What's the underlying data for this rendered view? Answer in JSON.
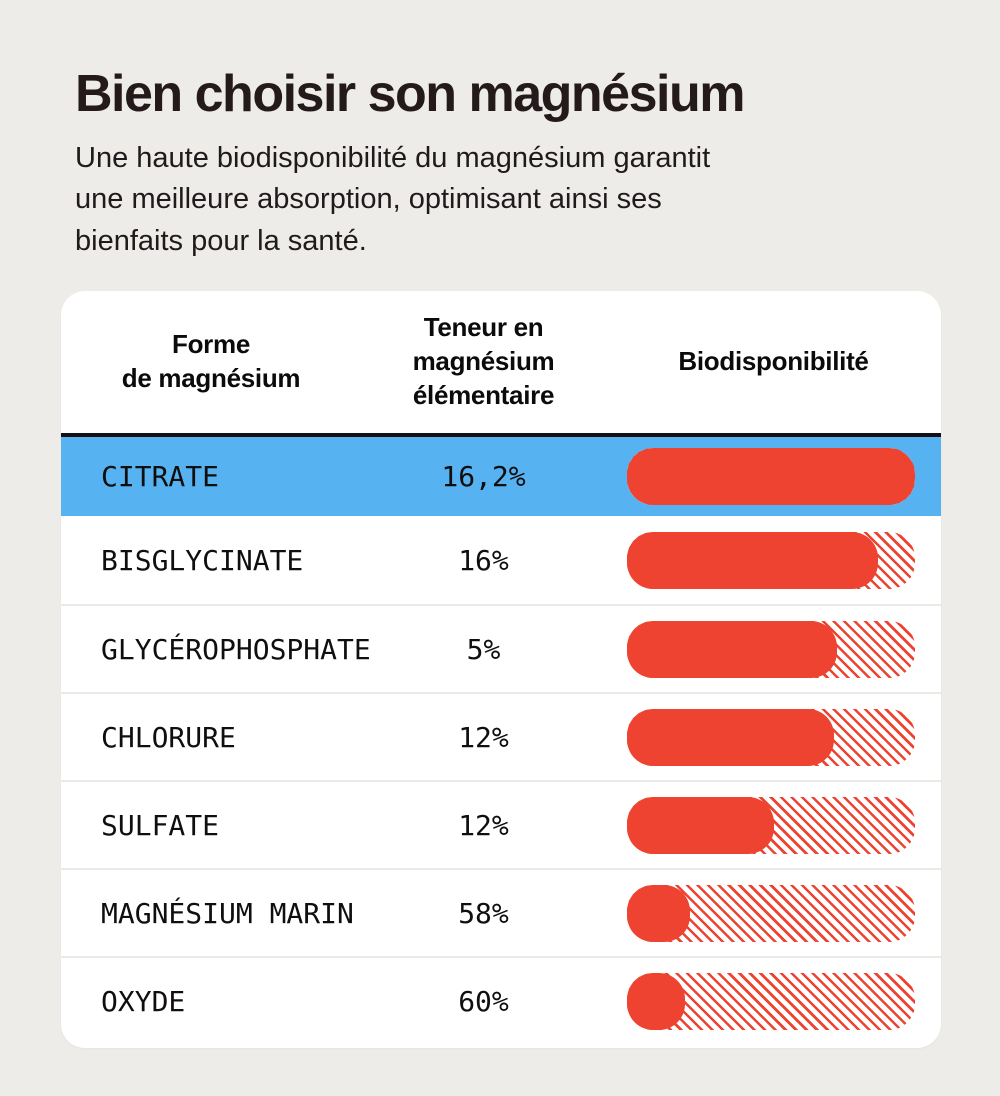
{
  "colors": {
    "background": "#edece9",
    "card": "#ffffff",
    "accent_red": "#ee4330",
    "highlight_blue": "#56b2f0",
    "text": "#141112"
  },
  "header": {
    "title": "Bien choisir son magnésium",
    "subtitle": "Une haute biodisponibilité du magnésium garantit\nune meilleure absorption, optimisant ainsi ses\nbienfaits pour la santé."
  },
  "table": {
    "columns": [
      {
        "label": "Forme\nde magnésium"
      },
      {
        "label": "Teneur en\nmagnésium\nélémentaire"
      },
      {
        "label": "Biodisponibilité"
      }
    ],
    "rows": [
      {
        "form": "CITRATE",
        "content": "16,2%",
        "bio_fill_pct": 100,
        "highlight": true
      },
      {
        "form": "BISGLYCINATE",
        "content": "16%",
        "bio_fill_pct": 87,
        "highlight": false
      },
      {
        "form": "GLYCÉROPHOSPHATE",
        "content": "5%",
        "bio_fill_pct": 73,
        "highlight": false
      },
      {
        "form": "CHLORURE",
        "content": "12%",
        "bio_fill_pct": 72,
        "highlight": false
      },
      {
        "form": "SULFATE",
        "content": "12%",
        "bio_fill_pct": 51,
        "highlight": false
      },
      {
        "form": "MAGNÉSIUM MARIN",
        "content": "58%",
        "bio_fill_pct": 22,
        "highlight": false
      },
      {
        "form": "OXYDE",
        "content": "60%",
        "bio_fill_pct": 20,
        "highlight": false
      }
    ]
  },
  "chart_data": {
    "type": "bar",
    "orientation": "horizontal",
    "title": "Bien choisir son magnésium",
    "categories": [
      "Citrate",
      "Bisglycinate",
      "Glycérophosphate",
      "Chlorure",
      "Sulfate",
      "Magnésium marin",
      "Oxyde"
    ],
    "series": [
      {
        "name": "Teneur en magnésium élémentaire (%)",
        "values": [
          16.2,
          16,
          5,
          12,
          12,
          58,
          60
        ]
      },
      {
        "name": "Biodisponibilité (part pleine de la barre, %)",
        "values": [
          100,
          87,
          73,
          72,
          51,
          22,
          20
        ]
      }
    ],
    "xlim": [
      0,
      100
    ],
    "grid": false,
    "legend_position": "none",
    "highlighted_category": "Citrate"
  }
}
